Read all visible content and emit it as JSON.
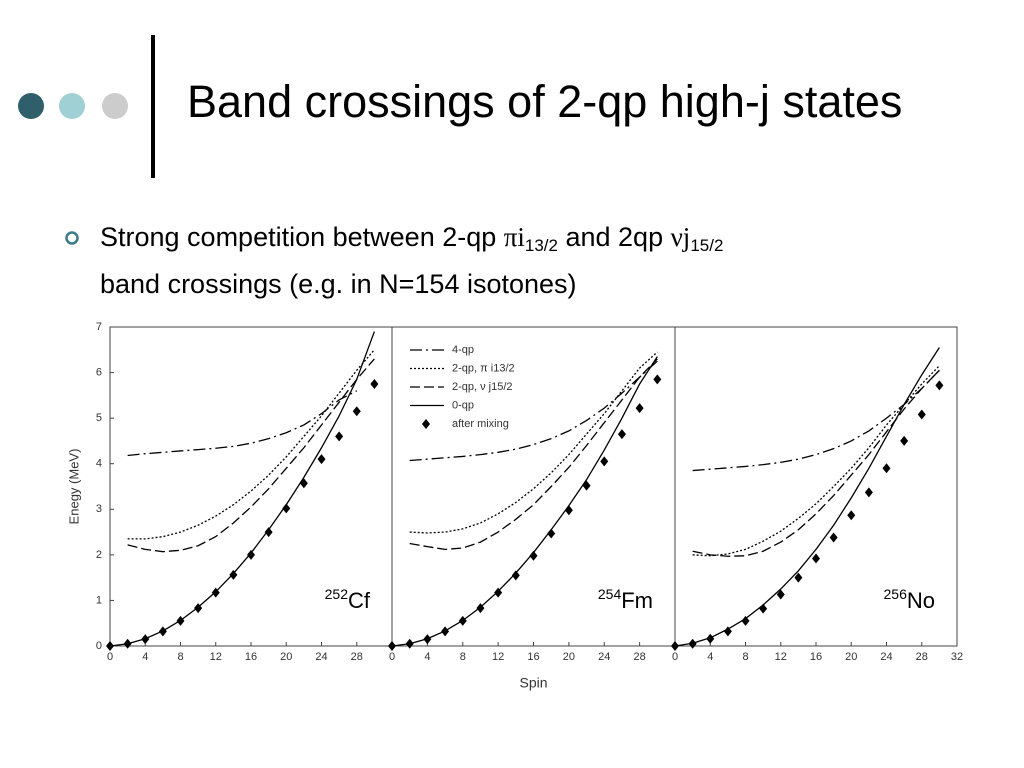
{
  "slide": {
    "title": "Band crossings of 2-qp high-j states",
    "bullet": {
      "line1": [
        "Strong competition between 2-qp ",
        "πi",
        "13/2",
        " and 2qp ",
        "νj",
        "15/2"
      ],
      "line2": "band crossings (e.g. in N=154 isotones)"
    }
  },
  "chart_data": [
    {
      "type": "line",
      "ylabel": "Enegy (MeV)",
      "nucleus": {
        "mass": "252",
        "symbol": "Cf"
      },
      "x": [
        0,
        2,
        4,
        6,
        8,
        10,
        12,
        14,
        16,
        18,
        20,
        22,
        24,
        26,
        28,
        30
      ],
      "xlim": [
        0,
        32
      ],
      "xticks": [
        0,
        4,
        8,
        12,
        16,
        20,
        24,
        28
      ],
      "ylim": [
        0,
        7
      ],
      "yticks": [
        0,
        1,
        2,
        3,
        4,
        5,
        6,
        7
      ],
      "series": [
        {
          "style": "dashdot",
          "color": "#000000",
          "values": [
            null,
            4.18,
            4.22,
            4.25,
            4.28,
            4.31,
            4.34,
            4.38,
            4.45,
            4.55,
            4.68,
            4.85,
            5.1,
            5.4,
            5.6,
            null
          ]
        },
        {
          "style": "dotted",
          "color": "#000000",
          "values": [
            null,
            2.35,
            2.35,
            2.4,
            2.5,
            2.65,
            2.85,
            3.1,
            3.4,
            3.75,
            4.15,
            4.6,
            5.05,
            5.55,
            6.05,
            6.5
          ]
        },
        {
          "style": "dashed",
          "color": "#000000",
          "values": [
            null,
            2.22,
            2.12,
            2.07,
            2.1,
            2.2,
            2.4,
            2.7,
            3.05,
            3.45,
            3.9,
            4.35,
            4.85,
            5.35,
            5.85,
            6.3
          ]
        },
        {
          "style": "solid",
          "color": "#000000",
          "values": [
            0,
            0.05,
            0.16,
            0.33,
            0.56,
            0.85,
            1.19,
            1.59,
            2.04,
            2.55,
            3.1,
            3.7,
            4.35,
            5.05,
            5.85,
            6.9
          ]
        },
        {
          "style": "diamond",
          "color": "#000000",
          "values": [
            0,
            0.05,
            0.15,
            0.32,
            0.55,
            0.83,
            1.17,
            1.56,
            2.0,
            2.5,
            3.02,
            3.57,
            4.1,
            4.6,
            5.15,
            5.75
          ]
        }
      ]
    },
    {
      "type": "line",
      "xlabel": "Spin",
      "nucleus": {
        "mass": "254",
        "symbol": "Fm"
      },
      "legend": "upper left",
      "x": [
        0,
        2,
        4,
        6,
        8,
        10,
        12,
        14,
        16,
        18,
        20,
        22,
        24,
        26,
        28,
        30
      ],
      "xlim": [
        0,
        32
      ],
      "xticks": [
        0,
        4,
        8,
        12,
        16,
        20,
        24,
        28
      ],
      "ylim": [
        0,
        7
      ],
      "series": [
        {
          "name": "4-qp",
          "style": "dashdot",
          "color": "#000000",
          "values": [
            null,
            4.07,
            4.1,
            4.13,
            4.16,
            4.2,
            4.25,
            4.32,
            4.42,
            4.55,
            4.72,
            4.95,
            5.22,
            5.55,
            5.9,
            6.25
          ]
        },
        {
          "name": "2-qp, π i13/2",
          "style": "dotted",
          "color": "#000000",
          "values": [
            null,
            2.5,
            2.48,
            2.5,
            2.57,
            2.7,
            2.9,
            3.15,
            3.45,
            3.8,
            4.2,
            4.65,
            5.1,
            5.6,
            6.1,
            6.45
          ]
        },
        {
          "name": "2-qp, ν j15/2",
          "style": "dashed",
          "color": "#000000",
          "values": [
            null,
            2.25,
            2.18,
            2.12,
            2.15,
            2.28,
            2.5,
            2.78,
            3.1,
            3.5,
            3.92,
            4.4,
            4.9,
            5.4,
            5.9,
            6.3
          ]
        },
        {
          "name": "0-qp",
          "style": "solid",
          "color": "#000000",
          "values": [
            0,
            0.05,
            0.16,
            0.33,
            0.56,
            0.85,
            1.2,
            1.6,
            2.05,
            2.55,
            3.08,
            3.65,
            4.3,
            5.0,
            5.75,
            6.35
          ]
        },
        {
          "name": "after mixing",
          "style": "diamond",
          "color": "#000000",
          "values": [
            0,
            0.05,
            0.15,
            0.32,
            0.55,
            0.83,
            1.17,
            1.55,
            1.98,
            2.47,
            2.98,
            3.52,
            4.05,
            4.65,
            5.22,
            5.85
          ]
        }
      ]
    },
    {
      "type": "line",
      "nucleus": {
        "mass": "256",
        "symbol": "No"
      },
      "x": [
        0,
        2,
        4,
        6,
        8,
        10,
        12,
        14,
        16,
        18,
        20,
        22,
        24,
        26,
        28,
        30
      ],
      "xlim": [
        0,
        32
      ],
      "xticks": [
        0,
        4,
        8,
        12,
        16,
        20,
        24,
        28,
        32
      ],
      "ylim": [
        0,
        7
      ],
      "series": [
        {
          "style": "dashdot",
          "color": "#000000",
          "values": [
            null,
            3.85,
            3.88,
            3.91,
            3.94,
            3.98,
            4.03,
            4.1,
            4.2,
            4.33,
            4.5,
            4.72,
            5.0,
            5.3,
            5.65,
            6.05
          ]
        },
        {
          "style": "dotted",
          "color": "#000000",
          "values": [
            null,
            2.0,
            1.98,
            2.02,
            2.12,
            2.3,
            2.52,
            2.8,
            3.12,
            3.5,
            3.9,
            4.35,
            4.85,
            5.3,
            5.75,
            6.15
          ]
        },
        {
          "style": "dashed",
          "color": "#000000",
          "values": [
            null,
            2.08,
            2.0,
            1.97,
            1.98,
            2.08,
            2.28,
            2.55,
            2.9,
            3.3,
            3.75,
            4.2,
            4.7,
            5.2,
            5.65,
            6.05
          ]
        },
        {
          "style": "solid",
          "color": "#000000",
          "values": [
            0,
            0.06,
            0.18,
            0.37,
            0.6,
            0.9,
            1.25,
            1.65,
            2.12,
            2.65,
            3.25,
            3.9,
            4.6,
            5.3,
            5.95,
            6.55
          ]
        },
        {
          "style": "diamond",
          "color": "#000000",
          "values": [
            0,
            0.05,
            0.16,
            0.32,
            0.55,
            0.82,
            1.13,
            1.5,
            1.92,
            2.38,
            2.87,
            3.37,
            3.9,
            4.5,
            5.08,
            5.72
          ]
        }
      ]
    }
  ]
}
